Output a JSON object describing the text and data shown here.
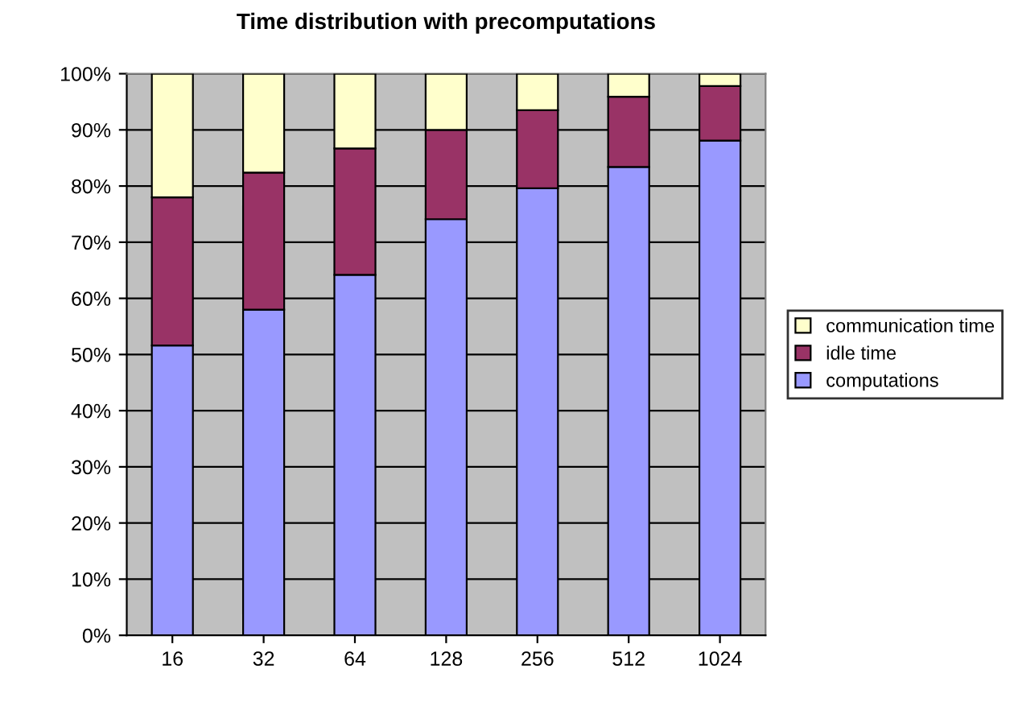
{
  "chart_data": {
    "type": "bar",
    "title": "Time distribution with precomputations",
    "categories": [
      "16",
      "32",
      "64",
      "128",
      "256",
      "512",
      "1024"
    ],
    "stacked": true,
    "series": [
      {
        "name": "computations",
        "color": "#9999ff",
        "values": [
          51.6,
          58.0,
          64.2,
          74.1,
          79.6,
          83.4,
          88.1
        ]
      },
      {
        "name": "idle time",
        "color": "#993366",
        "values": [
          26.4,
          24.4,
          22.5,
          15.9,
          13.9,
          12.5,
          9.7
        ]
      },
      {
        "name": "communication time",
        "color": "#ffffcc",
        "values": [
          22.0,
          17.6,
          13.3,
          10.0,
          6.5,
          4.1,
          2.2
        ]
      }
    ],
    "ylim": [
      0,
      100
    ],
    "yticks": [
      {
        "value": 0,
        "label": "0%"
      },
      {
        "value": 10,
        "label": "10%"
      },
      {
        "value": 20,
        "label": "20%"
      },
      {
        "value": 30,
        "label": "30%"
      },
      {
        "value": 40,
        "label": "40%"
      },
      {
        "value": 50,
        "label": "50%"
      },
      {
        "value": 60,
        "label": "60%"
      },
      {
        "value": 70,
        "label": "70%"
      },
      {
        "value": 80,
        "label": "80%"
      },
      {
        "value": 90,
        "label": "90%"
      },
      {
        "value": 100,
        "label": "100%"
      }
    ],
    "grid": "y",
    "legend": "right"
  }
}
